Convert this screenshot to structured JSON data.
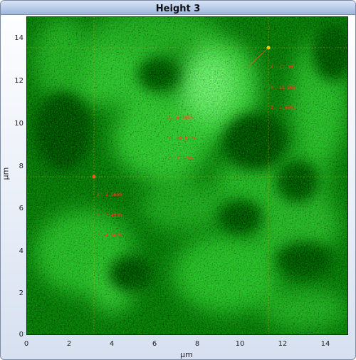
{
  "window": {
    "title": "Height 3"
  },
  "axes": {
    "x_label": "µm",
    "y_label": "µm",
    "x_ticks": [
      "0",
      "2",
      "4",
      "6",
      "8",
      "10",
      "12",
      "14"
    ],
    "y_ticks": [
      "0",
      "2",
      "4",
      "6",
      "8",
      "10",
      "12",
      "14"
    ]
  },
  "colors": {
    "image_base": "#0a6a0a",
    "image_bright": "#6cff6c",
    "marker": "#ff3b1e",
    "marker_selected": "#ffd200"
  },
  "markers": [
    {
      "x": "3.1609",
      "y": "7.4939",
      "z": "4.5626",
      "lines": [
        "X: 3.1609",
        "Y: 7.4939",
        "Z: 4.5626"
      ]
    },
    {
      "x": "6.1654",
      "y": "10.8774",
      "z": "3.1766",
      "lines": [
        "X: 6.1654",
        "Y: 10.8774",
        "Z: 3.1766"
      ]
    },
    {
      "x": "11.301",
      "y": "13.566",
      "z": "1.9091",
      "lines": [
        "X: 11.301",
        "Y: 13.566",
        "Z: 1.9091"
      ]
    }
  ]
}
